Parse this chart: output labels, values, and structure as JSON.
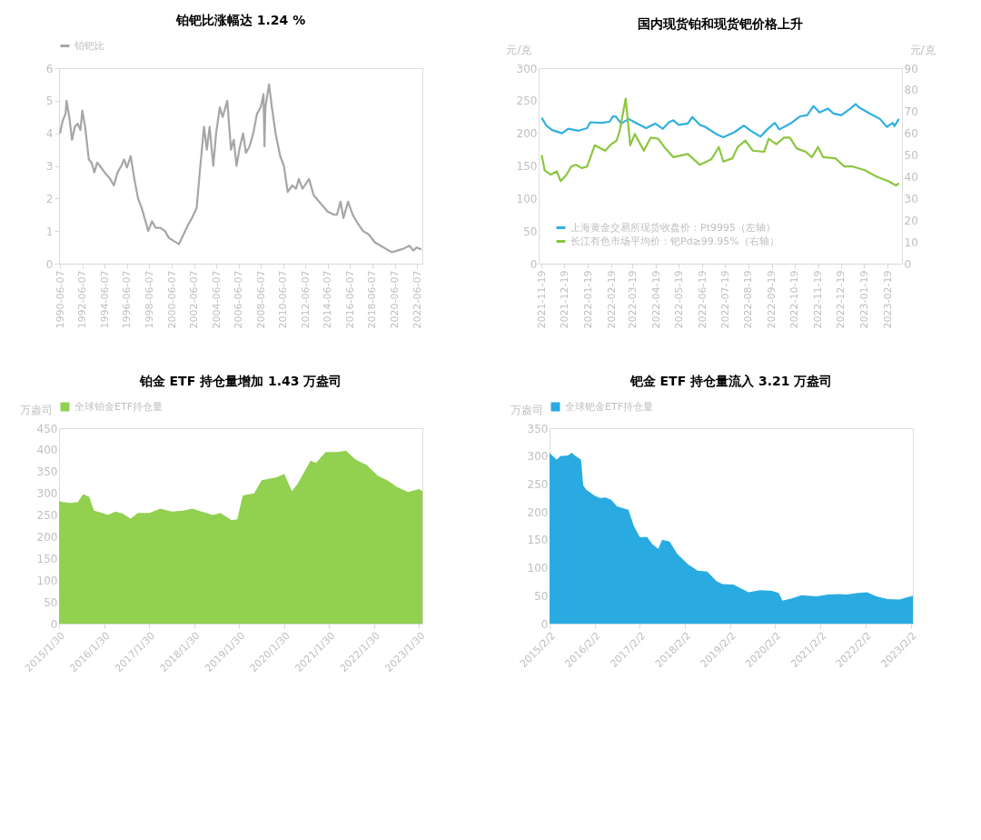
{
  "chart_data": [
    {
      "type": "line",
      "title": "铂钯比涨幅达 1.24 %",
      "legend": "top",
      "xlim": [
        "1990-05-01",
        "2022-11-30"
      ],
      "xticks": [
        "1990-06-07",
        "1992-06-07",
        "1994-06-07",
        "1996-06-07",
        "1998-06-07",
        "2000-06-07",
        "2002-06-07",
        "2004-06-07",
        "2006-06-07",
        "2008-06-07",
        "2010-06-07",
        "2012-06-07",
        "2014-06-07",
        "2016-06-07",
        "2018-06-07",
        "2020-06-07",
        "2022-06-07"
      ],
      "ylim": [
        0,
        6
      ],
      "yticks": [
        0,
        1,
        2,
        3,
        4,
        5,
        6
      ],
      "series": [
        {
          "name": "铂钯比",
          "color": "#a6a6a6",
          "x": [
            "1990-06",
            "1990-09",
            "1990-12",
            "1991-01",
            "1991-04",
            "1991-07",
            "1991-10",
            "1992-01",
            "1992-04",
            "1992-06",
            "1992-09",
            "1992-11",
            "1993-01",
            "1993-04",
            "1993-07",
            "1993-10",
            "1994-01",
            "1994-06",
            "1994-12",
            "1995-04",
            "1995-08",
            "1995-12",
            "1996-03",
            "1996-06",
            "1996-10",
            "1997-02",
            "1997-06",
            "1997-10",
            "1998-02",
            "1998-05",
            "1998-09",
            "1999-01",
            "1999-06",
            "1999-11",
            "2000-03",
            "2000-08",
            "2001-02",
            "2001-07",
            "2001-12",
            "2002-04",
            "2002-09",
            "2003-01",
            "2003-05",
            "2003-08",
            "2003-11",
            "2004-03",
            "2004-06",
            "2004-10",
            "2005-01",
            "2005-06",
            "2005-10",
            "2006-01",
            "2006-04",
            "2006-07",
            "2006-11",
            "2007-02",
            "2007-06",
            "2007-10",
            "2008-02",
            "2008-06",
            "2008-09",
            "2008-10",
            "2008-11",
            "2009-03",
            "2009-06",
            "2009-10",
            "2010-03",
            "2010-07",
            "2010-11",
            "2011-04",
            "2011-08",
            "2011-11",
            "2012-03",
            "2012-10",
            "2013-03",
            "2013-09",
            "2014-06",
            "2015-01",
            "2015-04",
            "2015-08",
            "2015-11",
            "2016-04",
            "2016-09",
            "2017-01",
            "2017-08",
            "2018-02",
            "2018-09",
            "2019-03",
            "2019-09",
            "2020-03",
            "2020-09",
            "2021-03",
            "2021-10",
            "2022-02",
            "2022-06",
            "2022-09",
            "2022-11"
          ],
          "values": [
            4.0,
            4.4,
            4.6,
            5.0,
            4.5,
            3.8,
            4.2,
            4.3,
            4.1,
            4.7,
            4.2,
            3.7,
            3.2,
            3.1,
            2.8,
            3.1,
            3.0,
            2.8,
            2.6,
            2.4,
            2.8,
            3.0,
            3.2,
            2.95,
            3.3,
            2.6,
            2.0,
            1.7,
            1.3,
            1.0,
            1.3,
            1.1,
            1.1,
            1.0,
            0.8,
            0.7,
            0.6,
            0.9,
            1.2,
            1.4,
            1.7,
            3.0,
            4.2,
            3.5,
            4.2,
            3.0,
            4.0,
            4.8,
            4.5,
            5.0,
            3.5,
            3.8,
            3.0,
            3.5,
            4.0,
            3.4,
            3.6,
            4.0,
            4.6,
            4.8,
            5.2,
            3.6,
            4.8,
            5.5,
            4.8,
            4.0,
            3.3,
            3.0,
            2.2,
            2.4,
            2.3,
            2.6,
            2.3,
            2.6,
            2.1,
            1.9,
            1.6,
            1.5,
            1.5,
            1.9,
            1.4,
            1.9,
            1.5,
            1.3,
            1.0,
            0.9,
            0.65,
            0.55,
            0.45,
            0.35,
            0.4,
            0.45,
            0.55,
            0.4,
            0.5,
            0.45,
            0.45
          ]
        }
      ]
    },
    {
      "type": "line",
      "title": "国内现货铂和现货钯价格上升",
      "ylabel": "元/克",
      "y2label": "元/克",
      "legend": "bottom left",
      "xlim": [
        "2021-11-15",
        "2023-03-10"
      ],
      "xticks": [
        "2021-11-19",
        "2021-12-19",
        "2022-01-19",
        "2022-02-19",
        "2022-03-19",
        "2022-04-19",
        "2022-05-19",
        "2022-06-19",
        "2022-07-19",
        "2022-08-19",
        "2022-09-19",
        "2022-10-19",
        "2022-11-19",
        "2022-12-19",
        "2023-01-19",
        "2023-02-19"
      ],
      "ylim": [
        0,
        300
      ],
      "yticks": [
        0,
        50,
        100,
        150,
        200,
        250,
        300
      ],
      "y2lim": [
        0,
        90
      ],
      "y2ticks": [
        0,
        10,
        20,
        30,
        40,
        50,
        60,
        70,
        80,
        90
      ],
      "series": [
        {
          "name": "上海黄金交易所现货收盘价：Pt9995（左轴）",
          "color": "#31b0e0",
          "x": [
            "2021-11-19",
            "2021-11-25",
            "2021-12-03",
            "2021-12-16",
            "2021-12-24",
            "2022-01-07",
            "2022-01-18",
            "2022-01-22",
            "2022-02-07",
            "2022-02-17",
            "2022-02-21",
            "2022-02-25",
            "2022-03-04",
            "2022-03-14",
            "2022-03-22",
            "2022-04-06",
            "2022-04-18",
            "2022-04-28",
            "2022-05-06",
            "2022-05-12",
            "2022-05-19",
            "2022-05-31",
            "2022-06-06",
            "2022-06-16",
            "2022-06-23",
            "2022-07-09",
            "2022-07-17",
            "2022-08-01",
            "2022-08-13",
            "2022-08-21",
            "2022-09-04",
            "2022-09-13",
            "2022-09-23",
            "2022-09-29",
            "2022-10-15",
            "2022-10-26",
            "2022-11-05",
            "2022-11-13",
            "2022-11-21",
            "2022-12-02",
            "2022-12-10",
            "2022-12-20",
            "2023-01-01",
            "2023-01-08",
            "2023-01-12",
            "2023-01-24",
            "2023-02-09",
            "2023-02-18",
            "2023-02-26",
            "2023-02-28",
            "2023-03-06"
          ],
          "values": [
            224,
            212,
            205,
            200,
            207,
            204,
            208,
            217,
            216,
            218,
            226,
            226,
            215,
            222,
            217,
            208,
            215,
            207,
            217,
            220,
            213,
            215,
            225,
            213,
            210,
            198,
            194,
            202,
            212,
            205,
            195,
            206,
            216,
            206,
            216,
            226,
            228,
            242,
            232,
            238,
            230,
            228,
            238,
            245,
            240,
            232,
            222,
            210,
            216,
            211,
            222
          ]
        },
        {
          "name": "长江有色市场平均价：钯Pd≥99.95%（右轴）",
          "color": "#8cc63f",
          "axis": "y2",
          "x": [
            "2021-11-19",
            "2021-11-23",
            "2021-12-01",
            "2021-12-09",
            "2021-12-14",
            "2021-12-22",
            "2021-12-28",
            "2022-01-03",
            "2022-01-11",
            "2022-01-18",
            "2022-01-22",
            "2022-01-28",
            "2022-02-11",
            "2022-02-19",
            "2022-02-26",
            "2022-03-02",
            "2022-03-10",
            "2022-03-16",
            "2022-03-22",
            "2022-04-03",
            "2022-04-12",
            "2022-04-22",
            "2022-04-30",
            "2022-05-12",
            "2022-05-31",
            "2022-06-16",
            "2022-07-01",
            "2022-07-11",
            "2022-07-17",
            "2022-07-29",
            "2022-08-05",
            "2022-08-15",
            "2022-08-25",
            "2022-09-09",
            "2022-09-15",
            "2022-09-25",
            "2022-10-05",
            "2022-10-13",
            "2022-10-22",
            "2022-11-03",
            "2022-11-11",
            "2022-11-19",
            "2022-11-26",
            "2022-12-12",
            "2022-12-24",
            "2023-01-04",
            "2023-01-20",
            "2023-02-05",
            "2023-02-20",
            "2023-03-02",
            "2023-03-06"
          ],
          "values": [
            50,
            43,
            41,
            42.5,
            38,
            41,
            44.7,
            45.5,
            44,
            44.7,
            48.5,
            54.5,
            52,
            55,
            56.7,
            61,
            76,
            54.5,
            59.7,
            52,
            58,
            57.5,
            53.7,
            49,
            50.5,
            45.5,
            48,
            53.7,
            47,
            48.5,
            53.7,
            56.7,
            52,
            51.5,
            57.5,
            55,
            58,
            58,
            53,
            51.5,
            49,
            53.7,
            49,
            48.5,
            44.7,
            44.7,
            43,
            40,
            38,
            36,
            37
          ]
        }
      ]
    },
    {
      "type": "area",
      "title": "铂金 ETF 持仓量增加 1.43 万盎司",
      "ylabel": "万盎司",
      "legend": "top",
      "xlim": [
        "2015-01-30",
        "2023-02-25"
      ],
      "xticks": [
        {
          "value": "2015-01-30",
          "label": "2015/1/30"
        },
        {
          "value": "2016-01-30",
          "label": "2016/1/30"
        },
        {
          "value": "2017-01-30",
          "label": "2017/1/30"
        },
        {
          "value": "2018-01-30",
          "label": "2018/1/30"
        },
        {
          "value": "2019-01-30",
          "label": "2019/1/30"
        },
        {
          "value": "2020-01-30",
          "label": "2020/1/30"
        },
        {
          "value": "2021-01-30",
          "label": "2021/1/30"
        },
        {
          "value": "2022-01-30",
          "label": "2022/1/30"
        },
        {
          "value": "2023-01-30",
          "label": "2023/1/30"
        }
      ],
      "ylim": [
        0,
        450
      ],
      "yticks": [
        0,
        50,
        100,
        150,
        200,
        250,
        300,
        350,
        400,
        450
      ],
      "series": [
        {
          "name": "全球铂金ETF持仓量",
          "color": "#92d050",
          "x": [
            "2015-01-30",
            "2015-03-01",
            "2015-05-01",
            "2015-07-01",
            "2015-08-15",
            "2015-10-01",
            "2015-11-10",
            "2016-01-15",
            "2016-03-01",
            "2016-05-01",
            "2016-07-01",
            "2016-09-01",
            "2016-11-01",
            "2017-02-01",
            "2017-05-01",
            "2017-08-01",
            "2017-11-01",
            "2018-01-15",
            "2018-04-01",
            "2018-07-01",
            "2018-09-01",
            "2018-12-01",
            "2019-01-15",
            "2019-03-01",
            "2019-06-01",
            "2019-08-01",
            "2019-12-01",
            "2020-02-01",
            "2020-04-01",
            "2020-05-15",
            "2020-09-01",
            "2020-10-15",
            "2021-01-01",
            "2021-04-01",
            "2021-06-15",
            "2021-09-01",
            "2021-12-01",
            "2022-03-01",
            "2022-05-15",
            "2022-08-01",
            "2022-11-01",
            "2023-01-30",
            "2023-02-25"
          ],
          "values": [
            282,
            280,
            278,
            280,
            298,
            292,
            260,
            255,
            250,
            258,
            253,
            242,
            255,
            255,
            265,
            258,
            260,
            265,
            258,
            250,
            255,
            238,
            240,
            295,
            300,
            330,
            337,
            345,
            305,
            320,
            375,
            370,
            395,
            395,
            398,
            378,
            365,
            340,
            330,
            315,
            303,
            310,
            305
          ]
        }
      ]
    },
    {
      "type": "area",
      "title": "钯金 ETF 持仓量流入 3.21 万盎司",
      "ylabel": "万盎司",
      "legend": "top",
      "xlim": [
        "2015-02-02",
        "2023-02-20"
      ],
      "xticks": [
        {
          "value": "2015-02-02",
          "label": "2015/2/2"
        },
        {
          "value": "2016-02-02",
          "label": "2016/2/2"
        },
        {
          "value": "2017-02-02",
          "label": "2017/2/2"
        },
        {
          "value": "2018-02-02",
          "label": "2018/2/2"
        },
        {
          "value": "2019-02-02",
          "label": "2019/2/2"
        },
        {
          "value": "2020-02-02",
          "label": "2020/2/2"
        },
        {
          "value": "2021-02-02",
          "label": "2021/2/2"
        },
        {
          "value": "2022-02-02",
          "label": "2022/2/2"
        },
        {
          "value": "2023-02-02",
          "label": "2023/2/2"
        }
      ],
      "ylim": [
        0,
        350
      ],
      "yticks": [
        0,
        50,
        100,
        150,
        200,
        250,
        300,
        350
      ],
      "series": [
        {
          "name": "全球钯金ETF持仓量",
          "color": "#29abe2",
          "x": [
            "2015-02-02",
            "2015-03-01",
            "2015-04-01",
            "2015-05-01",
            "2015-07-01",
            "2015-08-01",
            "2015-09-01",
            "2015-10-15",
            "2015-11-01",
            "2015-11-25",
            "2016-02-01",
            "2016-03-15",
            "2016-05-01",
            "2016-06-15",
            "2016-08-01",
            "2016-11-01",
            "2016-12-15",
            "2017-02-01",
            "2017-04-01",
            "2017-05-15",
            "2017-07-01",
            "2017-08-01",
            "2017-10-01",
            "2017-12-01",
            "2018-03-01",
            "2018-05-15",
            "2018-08-01",
            "2018-10-15",
            "2018-12-01",
            "2019-03-01",
            "2019-05-01",
            "2019-07-01",
            "2019-10-01",
            "2020-01-01",
            "2020-03-01",
            "2020-04-01",
            "2020-06-15",
            "2020-09-01",
            "2021-01-01",
            "2021-04-01",
            "2021-07-01",
            "2021-09-01",
            "2021-12-01",
            "2022-02-15",
            "2022-05-01",
            "2022-08-01",
            "2022-11-01",
            "2023-02-20"
          ],
          "values": [
            306,
            300,
            294,
            300,
            301,
            306,
            300,
            294,
            248,
            240,
            229,
            225,
            226,
            222,
            210,
            204,
            175,
            155,
            155,
            142,
            134,
            150,
            147,
            125,
            106,
            95,
            93,
            76,
            71,
            70,
            63,
            56,
            60,
            59,
            55,
            41,
            45,
            51,
            49,
            52,
            53,
            52,
            55,
            56,
            49,
            44,
            43,
            50
          ]
        }
      ]
    }
  ]
}
